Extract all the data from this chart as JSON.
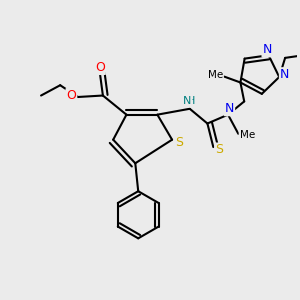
{
  "fig_bg": "#ebebeb",
  "bond_color": "#000000",
  "bond_width": 1.5,
  "colors": {
    "S": "#ccaa00",
    "N": "#0000ee",
    "O": "#ff0000",
    "C": "#000000",
    "H": "#008080"
  }
}
